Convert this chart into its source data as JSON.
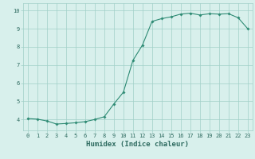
{
  "x": [
    0,
    1,
    2,
    3,
    4,
    5,
    6,
    7,
    8,
    9,
    10,
    11,
    12,
    13,
    14,
    15,
    16,
    17,
    18,
    19,
    20,
    21,
    22,
    23
  ],
  "y": [
    4.05,
    4.02,
    3.92,
    3.75,
    3.78,
    3.82,
    3.88,
    4.0,
    4.15,
    4.85,
    5.5,
    7.25,
    8.1,
    9.4,
    9.55,
    9.65,
    9.8,
    9.85,
    9.75,
    9.82,
    9.8,
    9.82,
    9.6,
    9.0
  ],
  "line_color": "#2e8b74",
  "marker": "D",
  "marker_size": 1.8,
  "linewidth": 0.8,
  "bg_color": "#d8f0ec",
  "grid_color": "#a0cfc8",
  "axis_color": "#2e6b60",
  "xlabel": "Humidex (Indice chaleur)",
  "xlim": [
    -0.5,
    23.5
  ],
  "ylim": [
    3.4,
    10.4
  ],
  "yticks": [
    4,
    5,
    6,
    7,
    8,
    9,
    10
  ],
  "xticks": [
    0,
    1,
    2,
    3,
    4,
    5,
    6,
    7,
    8,
    9,
    10,
    11,
    12,
    13,
    14,
    15,
    16,
    17,
    18,
    19,
    20,
    21,
    22,
    23
  ],
  "xtick_labels": [
    "0",
    "1",
    "2",
    "3",
    "4",
    "5",
    "6",
    "7",
    "8",
    "9",
    "10",
    "11",
    "12",
    "13",
    "14",
    "15",
    "16",
    "17",
    "18",
    "19",
    "20",
    "21",
    "22",
    "23"
  ],
  "tick_fontsize": 5.0,
  "xlabel_fontsize": 6.5
}
